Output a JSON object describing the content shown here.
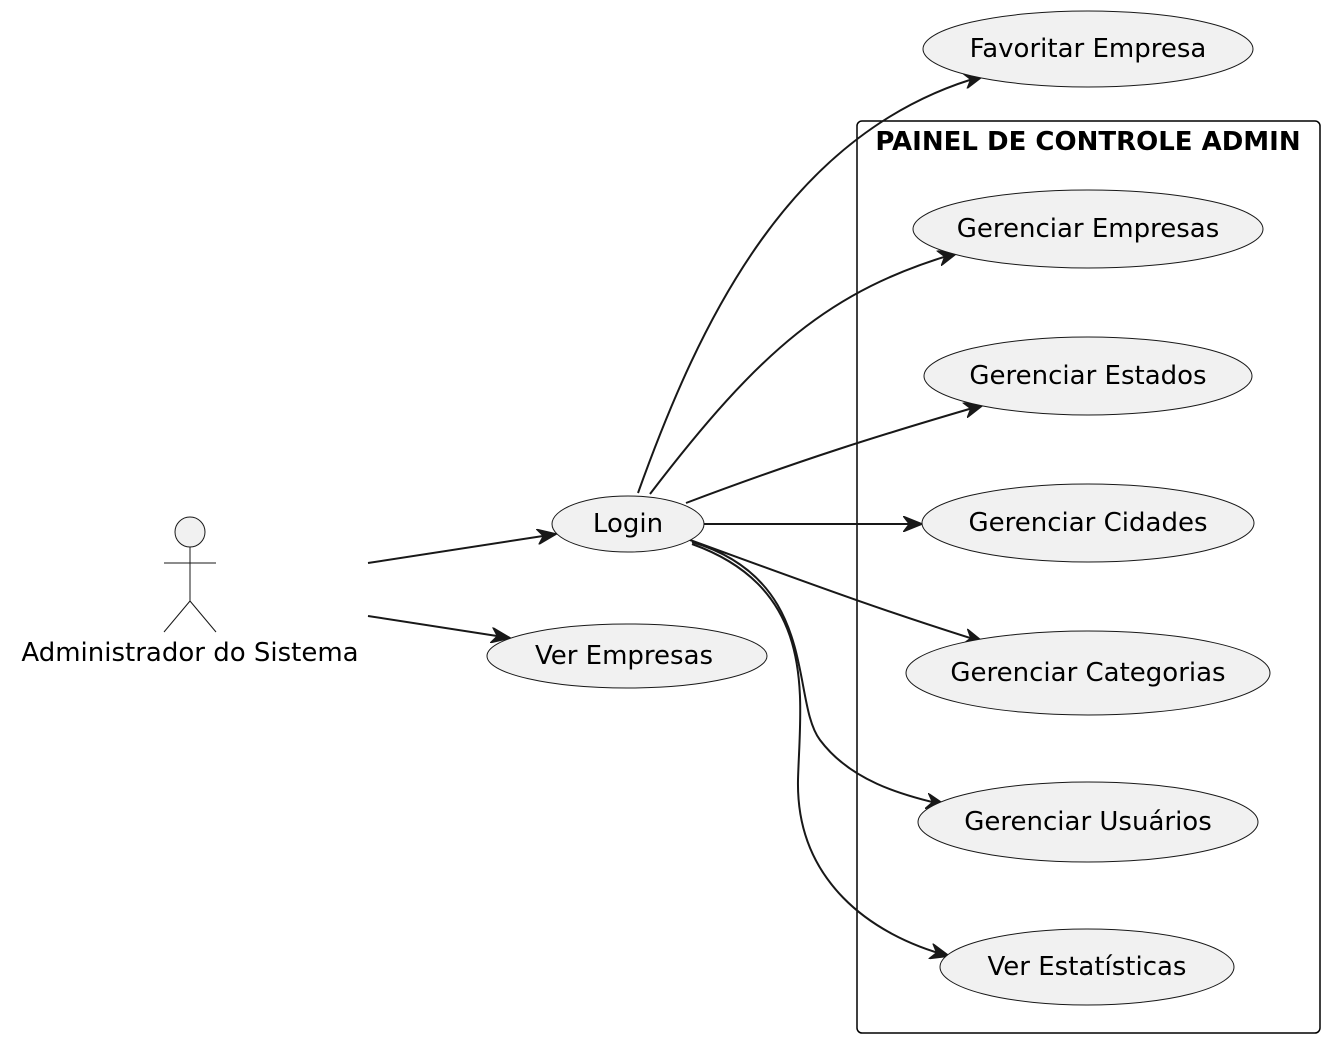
{
  "diagram": {
    "package": {
      "title": "PAINEL DE CONTROLE ADMIN"
    },
    "actor": {
      "label": "Administrador do Sistema"
    },
    "use_cases": {
      "favoritar_empresa": "Favoritar Empresa",
      "login": "Login",
      "ver_empresas": "Ver Empresas",
      "gerenciar_empresas": "Gerenciar Empresas",
      "gerenciar_estados": "Gerenciar Estados",
      "gerenciar_cidades": "Gerenciar Cidades",
      "gerenciar_categorias": "Gerenciar Categorias",
      "gerenciar_usuarios": "Gerenciar Usuários",
      "ver_estatisticas": "Ver Estatísticas"
    },
    "relations": [
      {
        "from": "actor",
        "to": "login"
      },
      {
        "from": "actor",
        "to": "ver_empresas"
      },
      {
        "from": "login",
        "to": "favoritar_empresa"
      },
      {
        "from": "login",
        "to": "gerenciar_empresas"
      },
      {
        "from": "login",
        "to": "gerenciar_estados"
      },
      {
        "from": "login",
        "to": "gerenciar_cidades"
      },
      {
        "from": "login",
        "to": "gerenciar_categorias"
      },
      {
        "from": "login",
        "to": "gerenciar_usuarios"
      },
      {
        "from": "login",
        "to": "ver_estatisticas"
      }
    ],
    "colors": {
      "use_case_fill": "#f1f1f1",
      "line": "#181818"
    }
  }
}
